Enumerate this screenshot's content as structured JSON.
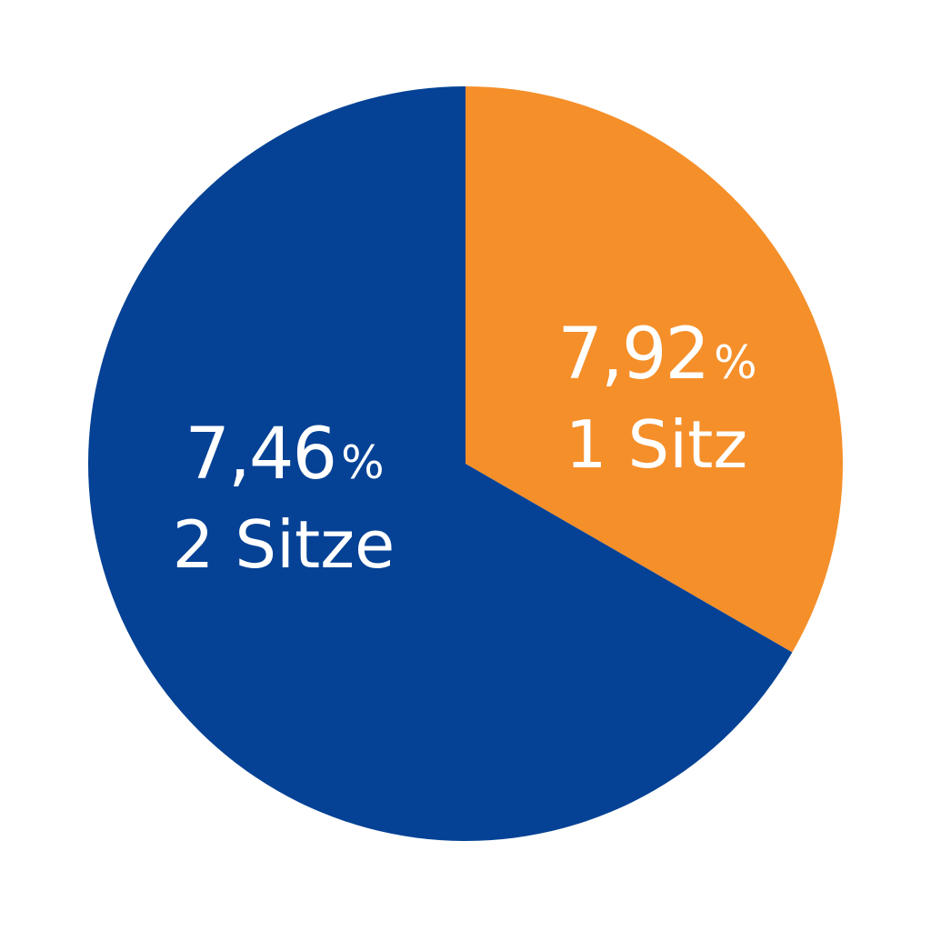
{
  "chart_data": {
    "type": "pie",
    "title": "",
    "start": "top",
    "direction": "clockwise",
    "slices": [
      {
        "percent_label": "7,92",
        "percent_symbol": "%",
        "seats_label": "1 Sitz",
        "percent": 7.92,
        "seats": 1,
        "color": "#F58F2A"
      },
      {
        "percent_label": "7,46",
        "percent_symbol": "%",
        "seats_label": "2 Sitze",
        "percent": 7.46,
        "seats": 2,
        "color": "#054295"
      }
    ]
  }
}
